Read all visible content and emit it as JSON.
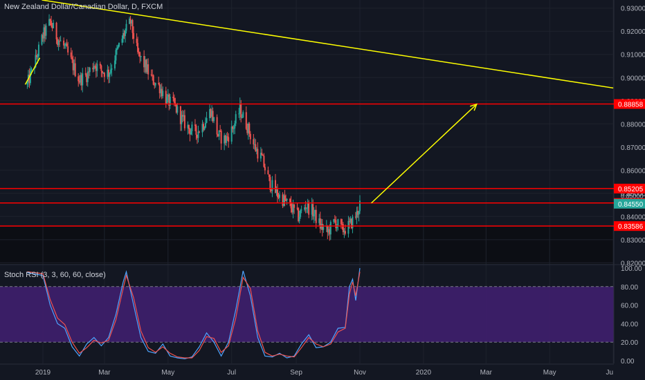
{
  "chart_data": [
    {
      "type": "candlestick",
      "title": "New Zealand Dollar/Canadian Dollar, D, FXCM",
      "ylim": [
        0.8195,
        0.9335
      ],
      "x_range": [
        "2018-12-15",
        "2020-06-30"
      ],
      "y_ticks": [
        0.93,
        0.92,
        0.91,
        0.9,
        0.89,
        0.88,
        0.87,
        0.86,
        0.85,
        0.84,
        0.83,
        0.82
      ],
      "y_tick_labels": [
        "0.93000",
        "0.92000",
        "0.91000",
        "0.90000",
        "0.89000",
        "0.88000",
        "0.87000",
        "0.86000",
        "0.85000",
        "0.84000",
        "0.83000",
        "0.82000"
      ],
      "x_tick_labels": [
        {
          "label": "2019",
          "date": "2019-01-01"
        },
        {
          "label": "Mar",
          "date": "2019-03-01"
        },
        {
          "label": "May",
          "date": "2019-05-01"
        },
        {
          "label": "Jul",
          "date": "2019-07-01"
        },
        {
          "label": "Sep",
          "date": "2019-09-01"
        },
        {
          "label": "Nov",
          "date": "2019-11-01"
        },
        {
          "label": "2020",
          "date": "2020-01-01"
        },
        {
          "label": "Mar",
          "date": "2020-03-01"
        },
        {
          "label": "May",
          "date": "2020-05-01"
        },
        {
          "label": "Ju",
          "date": "2020-07-01"
        }
      ],
      "price_path": [
        [
          "2018-12-17",
          0.897
        ],
        [
          "2018-12-24",
          0.906
        ],
        [
          "2019-01-01",
          0.918
        ],
        [
          "2019-01-08",
          0.924
        ],
        [
          "2019-01-15",
          0.917
        ],
        [
          "2019-01-22",
          0.913
        ],
        [
          "2019-01-29",
          0.906
        ],
        [
          "2019-02-05",
          0.899
        ],
        [
          "2019-02-12",
          0.901
        ],
        [
          "2019-02-19",
          0.906
        ],
        [
          "2019-02-26",
          0.903
        ],
        [
          "2019-03-05",
          0.902
        ],
        [
          "2019-03-12",
          0.91
        ],
        [
          "2019-03-19",
          0.918
        ],
        [
          "2019-03-26",
          0.924
        ],
        [
          "2019-04-02",
          0.91
        ],
        [
          "2019-04-09",
          0.905
        ],
        [
          "2019-04-16",
          0.899
        ],
        [
          "2019-04-23",
          0.896
        ],
        [
          "2019-04-30",
          0.89
        ],
        [
          "2019-05-07",
          0.888
        ],
        [
          "2019-05-14",
          0.882
        ],
        [
          "2019-05-21",
          0.878
        ],
        [
          "2019-05-28",
          0.876
        ],
        [
          "2019-06-04",
          0.88
        ],
        [
          "2019-06-11",
          0.886
        ],
        [
          "2019-06-18",
          0.875
        ],
        [
          "2019-06-25",
          0.873
        ],
        [
          "2019-07-02",
          0.878
        ],
        [
          "2019-07-09",
          0.886
        ],
        [
          "2019-07-16",
          0.879
        ],
        [
          "2019-07-23",
          0.87
        ],
        [
          "2019-07-30",
          0.865
        ],
        [
          "2019-08-06",
          0.855
        ],
        [
          "2019-08-13",
          0.85
        ],
        [
          "2019-08-20",
          0.847
        ],
        [
          "2019-08-27",
          0.844
        ],
        [
          "2019-09-03",
          0.84
        ],
        [
          "2019-09-10",
          0.845
        ],
        [
          "2019-09-17",
          0.842
        ],
        [
          "2019-09-24",
          0.836
        ],
        [
          "2019-10-01",
          0.833
        ],
        [
          "2019-10-08",
          0.838
        ],
        [
          "2019-10-15",
          0.834
        ],
        [
          "2019-10-22",
          0.836
        ],
        [
          "2019-10-29",
          0.841
        ],
        [
          "2019-11-01",
          0.8455
        ]
      ],
      "last_price": 0.8455,
      "last_price_label": "0.84550",
      "extra_axis_label": "0.85000",
      "horizontal_levels": [
        {
          "value": 0.88858,
          "label": "0.88858"
        },
        {
          "value": 0.85205,
          "label": "0.85205"
        },
        {
          "value": 0.84583,
          "label": "0.84583"
        },
        {
          "value": 0.83586,
          "label": "0.83586"
        }
      ],
      "trendline": {
        "from": [
          "2018-12-31",
          0.9335
        ],
        "to": [
          "2020-07-01",
          0.8955
        ]
      },
      "support_line": {
        "from": [
          "2018-12-15",
          0.897
        ],
        "to": [
          "2018-12-29",
          0.9085
        ]
      },
      "projection_arrow": {
        "from": [
          "2019-11-12",
          0.8458
        ],
        "to": [
          "2020-02-21",
          0.8885
        ]
      },
      "colors": {
        "background": "#131722",
        "up": "#26a69a",
        "down": "#ef5350",
        "level": "#ff0000",
        "trend": "#ffff00",
        "level_tag": "#ff0000"
      }
    },
    {
      "type": "line",
      "title": "Stoch RSI (3, 3, 60, 60, close)",
      "ylim": [
        -3,
        103
      ],
      "y_ticks": [
        100,
        80,
        60,
        40,
        20,
        0
      ],
      "y_tick_labels": [
        "100.00",
        "80.00",
        "60.00",
        "40.00",
        "20.00",
        "0.00"
      ],
      "band": [
        20,
        80
      ],
      "series": [
        {
          "color": "#4ea5ff",
          "values": [
            [
              "2018-12-17",
              95
            ],
            [
              "2019-01-01",
              92
            ],
            [
              "2019-01-08",
              60
            ],
            [
              "2019-01-15",
              40
            ],
            [
              "2019-01-22",
              35
            ],
            [
              "2019-01-29",
              15
            ],
            [
              "2019-02-05",
              5
            ],
            [
              "2019-02-12",
              18
            ],
            [
              "2019-02-19",
              25
            ],
            [
              "2019-02-26",
              16
            ],
            [
              "2019-03-05",
              25
            ],
            [
              "2019-03-12",
              50
            ],
            [
              "2019-03-19",
              85
            ],
            [
              "2019-03-22",
              96
            ],
            [
              "2019-03-29",
              60
            ],
            [
              "2019-04-05",
              25
            ],
            [
              "2019-04-12",
              10
            ],
            [
              "2019-04-19",
              8
            ],
            [
              "2019-04-26",
              18
            ],
            [
              "2019-05-03",
              5
            ],
            [
              "2019-05-10",
              3
            ],
            [
              "2019-05-17",
              2
            ],
            [
              "2019-05-24",
              4
            ],
            [
              "2019-05-31",
              15
            ],
            [
              "2019-06-07",
              30
            ],
            [
              "2019-06-14",
              20
            ],
            [
              "2019-06-21",
              5
            ],
            [
              "2019-06-28",
              20
            ],
            [
              "2019-07-05",
              55
            ],
            [
              "2019-07-12",
              97
            ],
            [
              "2019-07-19",
              70
            ],
            [
              "2019-07-26",
              25
            ],
            [
              "2019-08-02",
              5
            ],
            [
              "2019-08-09",
              4
            ],
            [
              "2019-08-16",
              8
            ],
            [
              "2019-08-23",
              3
            ],
            [
              "2019-08-30",
              5
            ],
            [
              "2019-09-06",
              18
            ],
            [
              "2019-09-13",
              28
            ],
            [
              "2019-09-20",
              14
            ],
            [
              "2019-09-27",
              15
            ],
            [
              "2019-10-04",
              20
            ],
            [
              "2019-10-11",
              35
            ],
            [
              "2019-10-18",
              36
            ],
            [
              "2019-10-22",
              80
            ],
            [
              "2019-10-25",
              88
            ],
            [
              "2019-10-28",
              65
            ],
            [
              "2019-11-01",
              100
            ]
          ]
        },
        {
          "color": "#ef5350",
          "values": [
            [
              "2018-12-17",
              96
            ],
            [
              "2019-01-01",
              94
            ],
            [
              "2019-01-08",
              66
            ],
            [
              "2019-01-15",
              46
            ],
            [
              "2019-01-22",
              39
            ],
            [
              "2019-01-29",
              20
            ],
            [
              "2019-02-05",
              8
            ],
            [
              "2019-02-12",
              14
            ],
            [
              "2019-02-19",
              22
            ],
            [
              "2019-02-26",
              19
            ],
            [
              "2019-03-05",
              22
            ],
            [
              "2019-03-12",
              44
            ],
            [
              "2019-03-19",
              78
            ],
            [
              "2019-03-22",
              92
            ],
            [
              "2019-03-29",
              68
            ],
            [
              "2019-04-05",
              32
            ],
            [
              "2019-04-12",
              14
            ],
            [
              "2019-04-19",
              9
            ],
            [
              "2019-04-26",
              15
            ],
            [
              "2019-05-03",
              8
            ],
            [
              "2019-05-10",
              4
            ],
            [
              "2019-05-17",
              3
            ],
            [
              "2019-05-24",
              3
            ],
            [
              "2019-05-31",
              11
            ],
            [
              "2019-06-07",
              26
            ],
            [
              "2019-06-14",
              24
            ],
            [
              "2019-06-21",
              9
            ],
            [
              "2019-06-28",
              16
            ],
            [
              "2019-07-05",
              46
            ],
            [
              "2019-07-12",
              90
            ],
            [
              "2019-07-19",
              78
            ],
            [
              "2019-07-26",
              32
            ],
            [
              "2019-08-02",
              9
            ],
            [
              "2019-08-09",
              5
            ],
            [
              "2019-08-16",
              7
            ],
            [
              "2019-08-23",
              5
            ],
            [
              "2019-08-30",
              4
            ],
            [
              "2019-09-06",
              14
            ],
            [
              "2019-09-13",
              25
            ],
            [
              "2019-09-20",
              18
            ],
            [
              "2019-09-27",
              15
            ],
            [
              "2019-10-04",
              18
            ],
            [
              "2019-10-11",
              31
            ],
            [
              "2019-10-18",
              35
            ],
            [
              "2019-10-22",
              72
            ],
            [
              "2019-10-25",
              85
            ],
            [
              "2019-10-28",
              70
            ],
            [
              "2019-11-01",
              96
            ]
          ]
        }
      ],
      "colors": {
        "band_fill": "#3f1f6e",
        "band_line": "#787b86"
      }
    }
  ]
}
